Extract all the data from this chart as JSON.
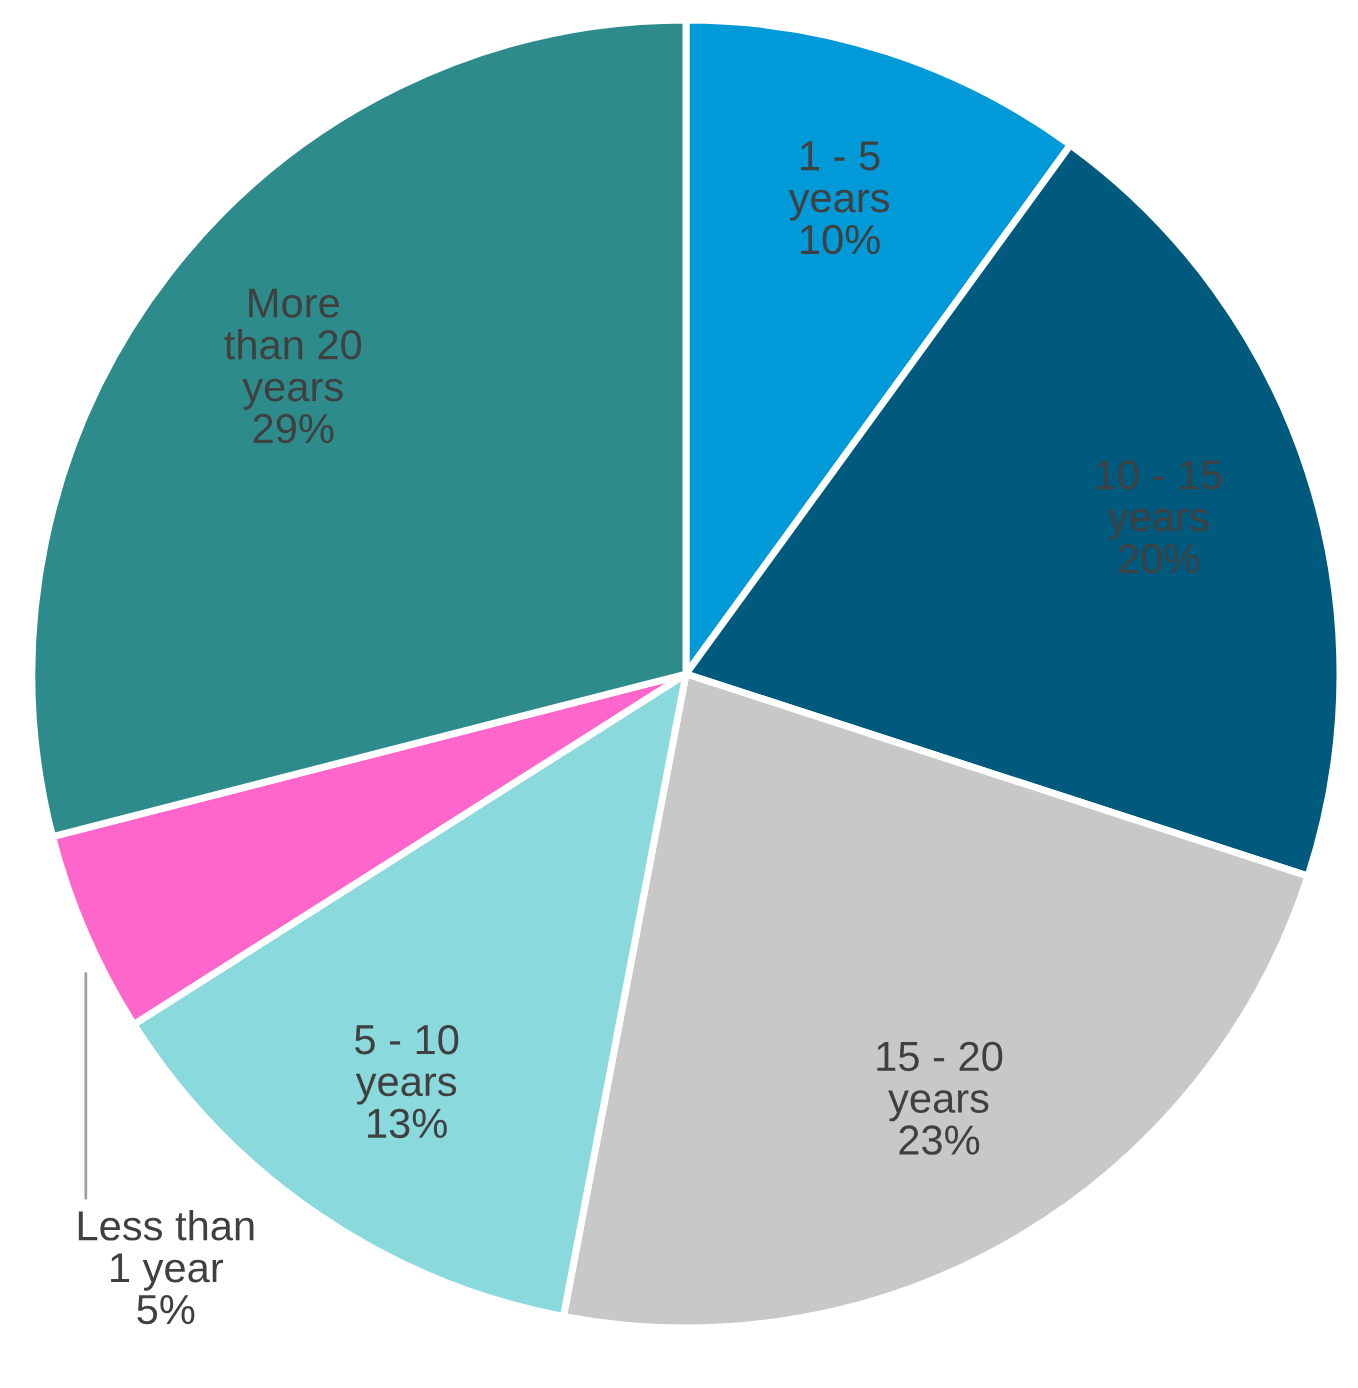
{
  "chart_data": {
    "type": "pie",
    "categories": [
      "1 - 5\nyears",
      "10 - 15\nyears",
      "15 - 20\nyears",
      "5 - 10\nyears",
      "Less than\n1 year",
      "More\nthan 20\nyears"
    ],
    "values": [
      10,
      20,
      23,
      13,
      5,
      29
    ],
    "value_labels": [
      "10%",
      "20%",
      "23%",
      "13%",
      "5%",
      "29%"
    ],
    "colors": [
      "#009ad8",
      "#005a7e",
      "#c8c8c8",
      "#8ad9dc",
      "#ff66cc",
      "#2e8b8b"
    ],
    "legend": false
  }
}
